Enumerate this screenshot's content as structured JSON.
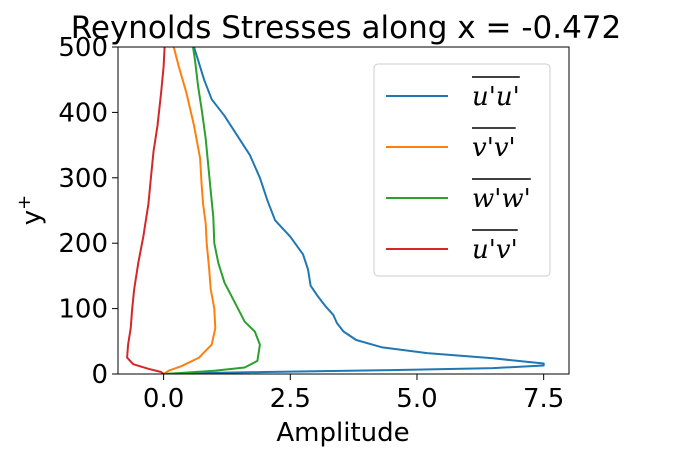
{
  "chart_data": {
    "type": "line",
    "title": "Reynolds Stresses along x = -0.472",
    "xlabel": "Amplitude",
    "ylabel": "y",
    "ylabel_superscript": "+",
    "xlim": [
      -0.9,
      8.0
    ],
    "ylim": [
      0,
      500
    ],
    "xticks": [
      0.0,
      2.5,
      5.0,
      7.5
    ],
    "xtick_labels": [
      "0.0",
      "2.5",
      "5.0",
      "7.5"
    ],
    "yticks": [
      0,
      100,
      200,
      300,
      400,
      500
    ],
    "ytick_labels": [
      "0",
      "100",
      "200",
      "300",
      "400",
      "500"
    ],
    "grid": false,
    "legend_position": "top-right",
    "series": [
      {
        "name": "u'u'",
        "color": "#1f77b4",
        "points": [
          [
            0.0,
            0
          ],
          [
            0.5,
            1
          ],
          [
            2.0,
            3
          ],
          [
            4.5,
            6
          ],
          [
            6.5,
            9
          ],
          [
            7.5,
            13
          ],
          [
            7.5,
            16
          ],
          [
            6.5,
            24
          ],
          [
            5.2,
            32
          ],
          [
            4.3,
            41
          ],
          [
            3.8,
            52
          ],
          [
            3.55,
            65
          ],
          [
            3.42,
            78
          ],
          [
            3.35,
            90
          ],
          [
            3.2,
            103
          ],
          [
            3.05,
            118
          ],
          [
            2.9,
            135
          ],
          [
            2.85,
            160
          ],
          [
            2.75,
            183
          ],
          [
            2.5,
            210
          ],
          [
            2.2,
            235
          ],
          [
            2.05,
            265
          ],
          [
            1.9,
            300
          ],
          [
            1.7,
            335
          ],
          [
            1.45,
            365
          ],
          [
            1.2,
            395
          ],
          [
            0.95,
            420
          ],
          [
            0.8,
            450
          ],
          [
            0.7,
            475
          ],
          [
            0.6,
            500
          ]
        ]
      },
      {
        "name": "v'v'",
        "color": "#ff7f0e",
        "points": [
          [
            0.0,
            0
          ],
          [
            0.1,
            5
          ],
          [
            0.35,
            12
          ],
          [
            0.7,
            25
          ],
          [
            0.95,
            45
          ],
          [
            1.02,
            70
          ],
          [
            1.0,
            100
          ],
          [
            0.93,
            130
          ],
          [
            0.9,
            160
          ],
          [
            0.85,
            200
          ],
          [
            0.83,
            230
          ],
          [
            0.78,
            260
          ],
          [
            0.75,
            290
          ],
          [
            0.72,
            330
          ],
          [
            0.6,
            380
          ],
          [
            0.45,
            430
          ],
          [
            0.3,
            470
          ],
          [
            0.2,
            500
          ]
        ]
      },
      {
        "name": "w'w'",
        "color": "#2ca02c",
        "points": [
          [
            0.0,
            0
          ],
          [
            0.4,
            2
          ],
          [
            1.0,
            5
          ],
          [
            1.6,
            10
          ],
          [
            1.85,
            20
          ],
          [
            1.9,
            45
          ],
          [
            1.8,
            65
          ],
          [
            1.6,
            80
          ],
          [
            1.4,
            110
          ],
          [
            1.2,
            140
          ],
          [
            1.08,
            170
          ],
          [
            1.0,
            200
          ],
          [
            0.98,
            240
          ],
          [
            0.93,
            280
          ],
          [
            0.88,
            320
          ],
          [
            0.83,
            360
          ],
          [
            0.76,
            400
          ],
          [
            0.68,
            440
          ],
          [
            0.62,
            480
          ],
          [
            0.58,
            500
          ]
        ]
      },
      {
        "name": "u'v'",
        "color": "#d62728",
        "points": [
          [
            0.0,
            0
          ],
          [
            -0.05,
            3
          ],
          [
            -0.3,
            8
          ],
          [
            -0.6,
            15
          ],
          [
            -0.72,
            25
          ],
          [
            -0.7,
            45
          ],
          [
            -0.65,
            70
          ],
          [
            -0.62,
            100
          ],
          [
            -0.58,
            130
          ],
          [
            -0.5,
            170
          ],
          [
            -0.4,
            210
          ],
          [
            -0.3,
            260
          ],
          [
            -0.25,
            300
          ],
          [
            -0.2,
            340
          ],
          [
            -0.12,
            380
          ],
          [
            -0.05,
            430
          ],
          [
            0.0,
            470
          ],
          [
            0.02,
            500
          ]
        ]
      }
    ]
  }
}
